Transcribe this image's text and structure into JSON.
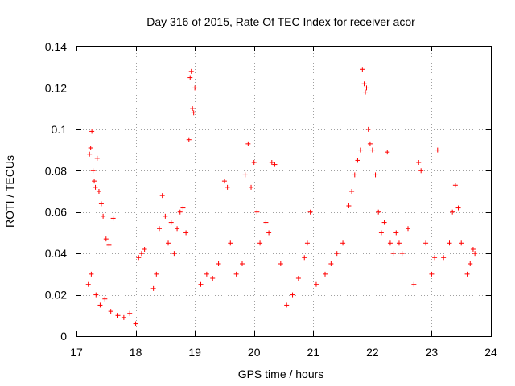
{
  "chart_data": {
    "type": "scatter",
    "title": "Day 316 of 2015, Rate Of TEC Index for receiver acor",
    "xlabel": "GPS time / hours",
    "ylabel": "ROTI / TECUs",
    "xlim": [
      17,
      24
    ],
    "ylim": [
      0,
      0.14
    ],
    "x_ticks": [
      17,
      18,
      19,
      20,
      21,
      22,
      23,
      24
    ],
    "x_tick_labels": [
      "17",
      "18",
      "19",
      "20",
      "21",
      "22",
      "23",
      "24"
    ],
    "y_ticks": [
      0,
      0.02,
      0.04,
      0.06,
      0.08,
      0.1,
      0.12,
      0.14
    ],
    "y_tick_labels": [
      "0",
      "0.02",
      "0.04",
      "0.06",
      "0.08",
      "0.1",
      "0.12",
      "0.14"
    ],
    "grid": true,
    "marker": "+",
    "marker_color": "#ff0000",
    "series": [
      {
        "x": [
          17.22,
          17.24,
          17.26,
          17.28,
          17.3,
          17.32,
          17.35,
          17.38,
          17.42,
          17.45,
          17.5,
          17.55,
          17.62,
          17.2,
          17.25,
          17.33,
          17.4,
          17.48,
          17.58,
          17.7,
          17.8,
          17.9,
          18.0,
          18.05,
          18.1,
          18.15,
          18.3,
          18.35,
          18.4,
          18.45,
          18.5,
          18.55,
          18.6,
          18.65,
          18.7,
          18.75,
          18.8,
          18.85,
          18.9,
          18.92,
          18.94,
          18.96,
          18.98,
          19.0,
          19.1,
          19.2,
          19.3,
          19.4,
          19.5,
          19.55,
          19.6,
          19.7,
          19.8,
          19.85,
          19.9,
          19.95,
          20.0,
          20.05,
          20.1,
          20.2,
          20.25,
          20.3,
          20.35,
          20.45,
          20.55,
          20.65,
          20.75,
          20.85,
          20.9,
          20.95,
          21.05,
          21.2,
          21.3,
          21.4,
          21.5,
          21.6,
          21.65,
          21.7,
          21.75,
          21.8,
          21.83,
          21.86,
          21.88,
          21.9,
          21.93,
          21.96,
          22.0,
          22.05,
          22.1,
          22.15,
          22.2,
          22.25,
          22.3,
          22.35,
          22.4,
          22.45,
          22.5,
          22.6,
          22.7,
          22.78,
          22.82,
          22.9,
          23.0,
          23.05,
          23.1,
          23.2,
          23.3,
          23.35,
          23.4,
          23.45,
          23.5,
          23.6,
          23.65,
          23.7,
          23.73
        ],
        "y": [
          0.088,
          0.091,
          0.099,
          0.08,
          0.075,
          0.072,
          0.086,
          0.07,
          0.064,
          0.058,
          0.047,
          0.044,
          0.057,
          0.025,
          0.03,
          0.02,
          0.015,
          0.018,
          0.012,
          0.01,
          0.009,
          0.011,
          0.006,
          0.038,
          0.04,
          0.042,
          0.023,
          0.03,
          0.052,
          0.068,
          0.058,
          0.045,
          0.055,
          0.04,
          0.052,
          0.06,
          0.062,
          0.05,
          0.095,
          0.125,
          0.128,
          0.11,
          0.108,
          0.12,
          0.025,
          0.03,
          0.028,
          0.035,
          0.075,
          0.072,
          0.045,
          0.03,
          0.035,
          0.078,
          0.093,
          0.072,
          0.084,
          0.06,
          0.045,
          0.055,
          0.05,
          0.084,
          0.083,
          0.035,
          0.015,
          0.02,
          0.028,
          0.038,
          0.045,
          0.06,
          0.025,
          0.03,
          0.035,
          0.04,
          0.045,
          0.063,
          0.07,
          0.078,
          0.085,
          0.09,
          0.129,
          0.122,
          0.118,
          0.12,
          0.1,
          0.093,
          0.09,
          0.078,
          0.06,
          0.05,
          0.055,
          0.089,
          0.045,
          0.04,
          0.05,
          0.045,
          0.04,
          0.052,
          0.025,
          0.084,
          0.08,
          0.045,
          0.03,
          0.038,
          0.09,
          0.038,
          0.045,
          0.06,
          0.073,
          0.062,
          0.045,
          0.03,
          0.035,
          0.042,
          0.04
        ]
      }
    ]
  }
}
